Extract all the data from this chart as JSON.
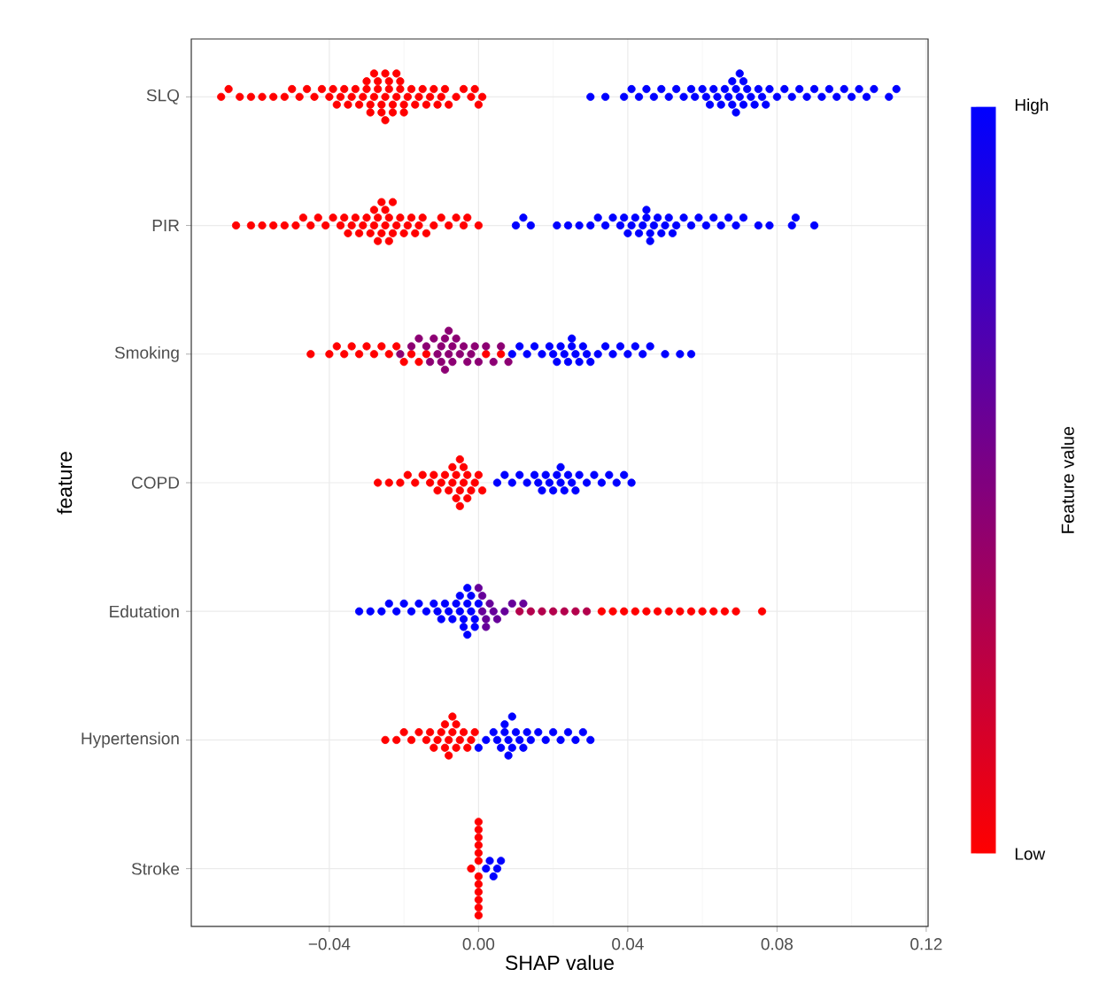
{
  "chart_data": {
    "type": "scatter",
    "orientation": "horizontal",
    "xlabel": "SHAP value",
    "ylabel": "feature",
    "clabel": "Feature value",
    "categories": [
      "SLQ",
      "PIR",
      "Smoking",
      "COPD",
      "Edutation",
      "Hypertension",
      "Stroke"
    ],
    "xlim": [
      -0.077,
      0.1205
    ],
    "xticks": [
      {
        "value": -0.04,
        "label": "−0.04"
      },
      {
        "value": 0,
        "label": "0.00"
      },
      {
        "value": 0.04,
        "label": "0.04"
      },
      {
        "value": 0.08,
        "label": "0.08"
      },
      {
        "value": 0.12,
        "label": "0.12"
      }
    ],
    "clim": [
      0,
      1
    ],
    "cticks": [
      {
        "value": 0,
        "label": "Low"
      },
      {
        "value": 1,
        "label": "High"
      }
    ],
    "grid": true,
    "marker": "circle",
    "series": [
      {
        "x": [
          "SLQ",
          "SLQ",
          "SLQ",
          "SLQ",
          "SLQ",
          "SLQ",
          "SLQ",
          "SLQ",
          "SLQ",
          "SLQ",
          "SLQ",
          "SLQ",
          "SLQ",
          "SLQ",
          "SLQ",
          "SLQ",
          "SLQ",
          "SLQ",
          "SLQ",
          "SLQ",
          "SLQ",
          "SLQ",
          "SLQ",
          "SLQ",
          "SLQ",
          "SLQ",
          "SLQ",
          "SLQ",
          "SLQ",
          "SLQ",
          "SLQ",
          "SLQ",
          "SLQ",
          "SLQ",
          "SLQ",
          "SLQ",
          "SLQ",
          "SLQ",
          "SLQ",
          "SLQ",
          "SLQ",
          "SLQ",
          "SLQ",
          "SLQ",
          "SLQ",
          "SLQ",
          "SLQ",
          "SLQ",
          "SLQ",
          "SLQ",
          "SLQ",
          "SLQ",
          "SLQ",
          "SLQ",
          "SLQ",
          "SLQ",
          "SLQ",
          "SLQ",
          "SLQ",
          "SLQ",
          "SLQ",
          "SLQ",
          "SLQ",
          "SLQ",
          "SLQ",
          "SLQ",
          "SLQ",
          "SLQ",
          "SLQ",
          "SLQ",
          "SLQ",
          "SLQ",
          "SLQ",
          "SLQ",
          "SLQ",
          "SLQ",
          "SLQ",
          "SLQ",
          "SLQ",
          "SLQ",
          "SLQ",
          "SLQ",
          "SLQ",
          "SLQ",
          "SLQ",
          "SLQ",
          "SLQ",
          "SLQ",
          "SLQ",
          "SLQ",
          "SLQ",
          "SLQ",
          "SLQ",
          "SLQ",
          "SLQ",
          "SLQ",
          "SLQ",
          "SLQ",
          "SLQ",
          "SLQ",
          "SLQ",
          "SLQ",
          "SLQ",
          "SLQ",
          "SLQ",
          "SLQ",
          "SLQ",
          "SLQ",
          "SLQ",
          "SLQ",
          "SLQ",
          "SLQ",
          "SLQ",
          "SLQ",
          "SLQ"
        ],
        "values": [
          -0.069,
          -0.067,
          -0.064,
          -0.061,
          -0.058,
          -0.055,
          -0.052,
          -0.05,
          -0.048,
          -0.046,
          -0.044,
          -0.042,
          -0.04,
          -0.039,
          -0.038,
          -0.037,
          -0.036,
          -0.035,
          -0.034,
          -0.033,
          -0.032,
          -0.031,
          -0.03,
          -0.03,
          -0.029,
          -0.029,
          -0.028,
          -0.028,
          -0.027,
          -0.027,
          -0.026,
          -0.026,
          -0.025,
          -0.025,
          -0.025,
          -0.024,
          -0.024,
          -0.023,
          -0.023,
          -0.022,
          -0.022,
          -0.021,
          -0.021,
          -0.02,
          -0.02,
          -0.019,
          -0.018,
          -0.017,
          -0.016,
          -0.015,
          -0.014,
          -0.013,
          -0.012,
          -0.011,
          -0.01,
          -0.009,
          -0.008,
          -0.006,
          -0.004,
          -0.002,
          -0.001,
          0.0,
          0.001,
          0.03,
          0.034,
          0.039,
          0.041,
          0.043,
          0.045,
          0.047,
          0.049,
          0.051,
          0.053,
          0.055,
          0.057,
          0.058,
          0.06,
          0.061,
          0.062,
          0.063,
          0.064,
          0.065,
          0.066,
          0.067,
          0.068,
          0.068,
          0.069,
          0.069,
          0.07,
          0.07,
          0.071,
          0.071,
          0.072,
          0.073,
          0.074,
          0.075,
          0.076,
          0.077,
          0.078,
          0.08,
          0.082,
          0.084,
          0.086,
          0.088,
          0.09,
          0.092,
          0.094,
          0.096,
          0.098,
          0.1,
          0.102,
          0.104,
          0.106,
          0.11,
          0.112
        ],
        "cvalues": [
          0,
          0,
          0,
          0,
          0,
          0,
          0,
          0,
          0,
          0,
          0,
          0,
          0,
          0,
          0,
          0,
          0,
          0,
          0,
          0,
          0,
          0,
          0,
          0,
          0,
          0,
          0,
          0,
          0,
          0,
          0,
          0,
          0,
          0,
          0,
          0,
          0,
          0,
          0,
          0,
          0,
          0,
          0,
          0,
          0,
          0,
          0,
          0,
          0,
          0,
          0,
          0,
          0,
          0,
          0,
          0,
          0,
          0,
          0,
          0,
          0,
          0,
          0,
          1,
          1,
          1,
          1,
          1,
          1,
          1,
          1,
          1,
          1,
          1,
          1,
          1,
          1,
          1,
          1,
          1,
          1,
          1,
          1,
          1,
          1,
          1,
          1,
          1,
          1,
          1,
          1,
          1,
          1,
          1,
          1,
          1,
          1,
          1,
          1,
          1,
          1,
          1,
          1,
          1,
          1,
          1,
          1,
          1,
          1,
          1,
          1,
          1,
          1,
          1,
          1
        ],
        "colors": [
          "#ff0000",
          "#ff0000",
          "#ff0000",
          "#ff0000",
          "#ff0000",
          "#ff0000",
          "#ff0000",
          "#ff0000",
          "#ff0000",
          "#ff0000",
          "#ff0000",
          "#ff0000",
          "#ff0000",
          "#ff0000",
          "#ff0000",
          "#ff0000",
          "#ff0000",
          "#ff0000",
          "#ff0000",
          "#ff0000",
          "#ff0000",
          "#ff0000",
          "#ff0000",
          "#ff0000",
          "#ff0000",
          "#ff0000",
          "#ff0000",
          "#ff0000",
          "#ff0000",
          "#ff0000",
          "#ff0000",
          "#ff0000",
          "#ff0000",
          "#ff0000",
          "#ff0000",
          "#ff0000",
          "#ff0000",
          "#ff0000",
          "#ff0000",
          "#ff0000",
          "#ff0000",
          "#ff0000",
          "#ff0000",
          "#ff0000",
          "#ff0000",
          "#ff0000",
          "#ff0000",
          "#ff0000",
          "#ff0000",
          "#ff0000",
          "#ff0000",
          "#ff0000",
          "#ff0000",
          "#ff0000",
          "#ff0000",
          "#ff0000",
          "#ff0000",
          "#ff0000",
          "#ff0000",
          "#ff0000",
          "#ff0000",
          "#ff0000",
          "#ff0000",
          "#0000ff",
          "#0000ff",
          "#0000ff",
          "#0000ff",
          "#0000ff",
          "#0000ff",
          "#0000ff",
          "#0000ff",
          "#0000ff",
          "#0000ff",
          "#0000ff",
          "#0000ff",
          "#0000ff",
          "#0000ff",
          "#0000ff",
          "#0000ff",
          "#0000ff",
          "#0000ff",
          "#0000ff",
          "#0000ff",
          "#0000ff",
          "#0000ff",
          "#0000ff",
          "#0000ff",
          "#0000ff",
          "#0000ff",
          "#0000ff",
          "#0000ff",
          "#0000ff",
          "#0000ff",
          "#0000ff",
          "#0000ff",
          "#0000ff",
          "#0000ff",
          "#0000ff",
          "#0000ff",
          "#0000ff",
          "#0000ff",
          "#0000ff",
          "#0000ff",
          "#0000ff",
          "#0000ff",
          "#0000ff",
          "#0000ff",
          "#0000ff",
          "#0000ff",
          "#0000ff",
          "#0000ff",
          "#0000ff",
          "#0000ff",
          "#0000ff",
          "#0000ff"
        ]
      },
      {
        "x": [
          "PIR",
          "PIR",
          "PIR",
          "PIR",
          "PIR",
          "PIR",
          "PIR",
          "PIR",
          "PIR",
          "PIR",
          "PIR",
          "PIR",
          "PIR",
          "PIR",
          "PIR",
          "PIR",
          "PIR",
          "PIR",
          "PIR",
          "PIR",
          "PIR",
          "PIR",
          "PIR",
          "PIR",
          "PIR",
          "PIR",
          "PIR",
          "PIR",
          "PIR",
          "PIR",
          "PIR",
          "PIR",
          "PIR",
          "PIR",
          "PIR",
          "PIR",
          "PIR",
          "PIR",
          "PIR",
          "PIR",
          "PIR",
          "PIR",
          "PIR",
          "PIR",
          "PIR",
          "PIR",
          "PIR",
          "PIR",
          "PIR",
          "PIR",
          "PIR",
          "PIR",
          "PIR",
          "PIR",
          "PIR",
          "PIR",
          "PIR",
          "PIR",
          "PIR",
          "PIR",
          "PIR",
          "PIR",
          "PIR",
          "PIR",
          "PIR",
          "PIR",
          "PIR",
          "PIR",
          "PIR",
          "PIR",
          "PIR",
          "PIR",
          "PIR",
          "PIR",
          "PIR",
          "PIR",
          "PIR",
          "PIR",
          "PIR",
          "PIR",
          "PIR",
          "PIR",
          "PIR",
          "PIR",
          "PIR",
          "PIR",
          "PIR",
          "PIR",
          "PIR",
          "PIR"
        ],
        "values": [
          -0.065,
          -0.061,
          -0.058,
          -0.055,
          -0.052,
          -0.049,
          -0.047,
          -0.045,
          -0.043,
          -0.041,
          -0.039,
          -0.037,
          -0.036,
          -0.035,
          -0.034,
          -0.033,
          -0.032,
          -0.031,
          -0.03,
          -0.029,
          -0.028,
          -0.028,
          -0.027,
          -0.027,
          -0.026,
          -0.026,
          -0.025,
          -0.025,
          -0.024,
          -0.024,
          -0.023,
          -0.023,
          -0.022,
          -0.021,
          -0.02,
          -0.019,
          -0.018,
          -0.017,
          -0.016,
          -0.015,
          -0.014,
          -0.012,
          -0.01,
          -0.008,
          -0.006,
          -0.004,
          -0.003,
          0.0,
          0.01,
          0.012,
          0.014,
          0.021,
          0.024,
          0.027,
          0.03,
          0.032,
          0.034,
          0.036,
          0.038,
          0.039,
          0.04,
          0.041,
          0.042,
          0.043,
          0.044,
          0.045,
          0.045,
          0.046,
          0.046,
          0.047,
          0.048,
          0.049,
          0.05,
          0.051,
          0.052,
          0.053,
          0.055,
          0.057,
          0.059,
          0.061,
          0.063,
          0.065,
          0.067,
          0.069,
          0.071,
          0.075,
          0.078,
          0.084,
          0.085,
          0.09
        ],
        "cvalues": [
          0,
          0,
          0,
          0,
          0,
          0,
          0,
          0,
          0,
          0,
          0,
          0,
          0,
          0,
          0,
          0,
          0,
          0,
          0,
          0,
          0,
          0,
          0,
          0,
          0,
          0,
          0,
          0,
          0,
          0,
          0,
          0,
          0,
          0,
          0,
          0,
          0,
          0,
          0,
          0,
          0,
          0,
          0,
          0,
          0,
          0,
          0,
          0,
          1,
          1,
          1,
          1,
          1,
          1,
          1,
          1,
          1,
          1,
          1,
          1,
          1,
          1,
          1,
          1,
          1,
          1,
          1,
          1,
          1,
          1,
          1,
          1,
          1,
          1,
          1,
          1,
          1,
          1,
          1,
          1,
          1,
          1,
          1,
          1,
          1,
          1,
          1,
          1,
          1,
          1
        ],
        "colors": [
          "#ff0000",
          "#ff0000",
          "#ff0000",
          "#ff0000",
          "#ff0000",
          "#ff0000",
          "#ff0000",
          "#ff0000",
          "#ff0000",
          "#ff0000",
          "#ff0000",
          "#ff0000",
          "#ff0000",
          "#ff0000",
          "#ff0000",
          "#ff0000",
          "#ff0000",
          "#ff0000",
          "#ff0000",
          "#ff0000",
          "#ff0000",
          "#ff0000",
          "#ff0000",
          "#ff0000",
          "#ff0000",
          "#ff0000",
          "#ff0000",
          "#ff0000",
          "#ff0000",
          "#ff0000",
          "#ff0000",
          "#ff0000",
          "#ff0000",
          "#ff0000",
          "#ff0000",
          "#ff0000",
          "#ff0000",
          "#ff0000",
          "#ff0000",
          "#ff0000",
          "#ff0000",
          "#ff0000",
          "#ff0000",
          "#ff0000",
          "#ff0000",
          "#ff0000",
          "#ff0000",
          "#ff0000",
          "#0000ff",
          "#0000ff",
          "#0000ff",
          "#0000ff",
          "#0000ff",
          "#0000ff",
          "#0000ff",
          "#0000ff",
          "#0000ff",
          "#0000ff",
          "#0000ff",
          "#0000ff",
          "#0000ff",
          "#0000ff",
          "#0000ff",
          "#0000ff",
          "#0000ff",
          "#0000ff",
          "#0000ff",
          "#0000ff",
          "#0000ff",
          "#0000ff",
          "#0000ff",
          "#0000ff",
          "#0000ff",
          "#0000ff",
          "#0000ff",
          "#0000ff",
          "#0000ff",
          "#0000ff",
          "#0000ff",
          "#0000ff",
          "#0000ff",
          "#0000ff",
          "#0000ff",
          "#0000ff",
          "#0000ff",
          "#0000ff",
          "#0000ff",
          "#0000ff",
          "#0000ff",
          "#0000ff"
        ]
      },
      {
        "x": [
          "Smoking",
          "Smoking",
          "Smoking",
          "Smoking",
          "Smoking",
          "Smoking",
          "Smoking",
          "Smoking",
          "Smoking",
          "Smoking",
          "Smoking",
          "Smoking",
          "Smoking",
          "Smoking",
          "Smoking",
          "Smoking",
          "Smoking",
          "Smoking",
          "Smoking",
          "Smoking",
          "Smoking",
          "Smoking",
          "Smoking",
          "Smoking",
          "Smoking",
          "Smoking",
          "Smoking",
          "Smoking",
          "Smoking",
          "Smoking",
          "Smoking",
          "Smoking",
          "Smoking",
          "Smoking",
          "Smoking",
          "Smoking",
          "Smoking",
          "Smoking",
          "Smoking",
          "Smoking",
          "Smoking",
          "Smoking",
          "Smoking",
          "Smoking",
          "Smoking",
          "Smoking",
          "Smoking",
          "Smoking",
          "Smoking",
          "Smoking",
          "Smoking",
          "Smoking",
          "Smoking",
          "Smoking",
          "Smoking",
          "Smoking",
          "Smoking",
          "Smoking",
          "Smoking",
          "Smoking",
          "Smoking",
          "Smoking",
          "Smoking",
          "Smoking",
          "Smoking",
          "Smoking",
          "Smoking",
          "Smoking",
          "Smoking",
          "Smoking",
          "Smoking",
          "Smoking"
        ],
        "values": [
          -0.045,
          -0.04,
          -0.038,
          -0.036,
          -0.034,
          -0.032,
          -0.03,
          -0.028,
          -0.026,
          -0.024,
          -0.022,
          -0.02,
          -0.018,
          -0.016,
          -0.014,
          0.002,
          0.006,
          -0.021,
          -0.018,
          -0.016,
          -0.014,
          -0.013,
          -0.012,
          -0.011,
          -0.01,
          -0.01,
          -0.009,
          -0.009,
          -0.008,
          -0.008,
          -0.007,
          -0.007,
          -0.006,
          -0.005,
          -0.004,
          -0.003,
          -0.002,
          -0.001,
          0.0,
          0.002,
          0.004,
          0.006,
          0.008,
          0.009,
          0.011,
          0.013,
          0.015,
          0.017,
          0.019,
          0.02,
          0.021,
          0.022,
          0.023,
          0.024,
          0.025,
          0.025,
          0.026,
          0.027,
          0.028,
          0.029,
          0.03,
          0.032,
          0.034,
          0.036,
          0.038,
          0.04,
          0.042,
          0.044,
          0.046,
          0.05,
          0.054,
          0.057
        ],
        "cvalues": [
          0,
          0,
          0,
          0,
          0,
          0,
          0,
          0,
          0,
          0,
          0,
          0,
          0,
          0,
          0,
          0,
          0,
          0.45,
          0.45,
          0.45,
          0.45,
          0.45,
          0.45,
          0.45,
          0.45,
          0.45,
          0.45,
          0.45,
          0.45,
          0.45,
          0.45,
          0.45,
          0.45,
          0.45,
          0.45,
          0.45,
          0.45,
          0.45,
          0.45,
          0.45,
          0.45,
          0.45,
          0.45,
          1,
          1,
          1,
          1,
          1,
          1,
          1,
          1,
          1,
          1,
          1,
          1,
          1,
          1,
          1,
          1,
          1,
          1,
          1,
          1,
          1,
          1,
          1,
          1,
          1,
          1,
          1,
          1,
          1
        ],
        "colors": [
          "#ff0000",
          "#ff0000",
          "#ff0000",
          "#ff0000",
          "#ff0000",
          "#ff0000",
          "#ff0000",
          "#ff0000",
          "#ff0000",
          "#ff0000",
          "#ff0000",
          "#ff0000",
          "#ff0000",
          "#ff0000",
          "#ff0000",
          "#ff0000",
          "#ff0000",
          "#8c0073",
          "#8c0073",
          "#8c0073",
          "#8c0073",
          "#8c0073",
          "#8c0073",
          "#8c0073",
          "#8c0073",
          "#8c0073",
          "#8c0073",
          "#8c0073",
          "#8c0073",
          "#8c0073",
          "#8c0073",
          "#8c0073",
          "#8c0073",
          "#8c0073",
          "#8c0073",
          "#8c0073",
          "#8c0073",
          "#8c0073",
          "#8c0073",
          "#8c0073",
          "#8c0073",
          "#8c0073",
          "#8c0073",
          "#0000ff",
          "#0000ff",
          "#0000ff",
          "#0000ff",
          "#0000ff",
          "#0000ff",
          "#0000ff",
          "#0000ff",
          "#0000ff",
          "#0000ff",
          "#0000ff",
          "#0000ff",
          "#0000ff",
          "#0000ff",
          "#0000ff",
          "#0000ff",
          "#0000ff",
          "#0000ff",
          "#0000ff",
          "#0000ff",
          "#0000ff",
          "#0000ff",
          "#0000ff",
          "#0000ff",
          "#0000ff",
          "#0000ff",
          "#0000ff",
          "#0000ff",
          "#0000ff"
        ]
      },
      {
        "x": [
          "COPD",
          "COPD",
          "COPD",
          "COPD",
          "COPD",
          "COPD",
          "COPD",
          "COPD",
          "COPD",
          "COPD",
          "COPD",
          "COPD",
          "COPD",
          "COPD",
          "COPD",
          "COPD",
          "COPD",
          "COPD",
          "COPD",
          "COPD",
          "COPD",
          "COPD",
          "COPD",
          "COPD",
          "COPD",
          "COPD",
          "COPD",
          "COPD",
          "COPD",
          "COPD",
          "COPD",
          "COPD",
          "COPD",
          "COPD",
          "COPD",
          "COPD",
          "COPD",
          "COPD",
          "COPD",
          "COPD",
          "COPD",
          "COPD",
          "COPD",
          "COPD",
          "COPD",
          "COPD",
          "COPD",
          "COPD",
          "COPD",
          "COPD",
          "COPD",
          "COPD",
          "COPD"
        ],
        "values": [
          -0.027,
          -0.024,
          -0.021,
          -0.019,
          -0.017,
          -0.015,
          -0.013,
          -0.012,
          -0.011,
          -0.01,
          -0.009,
          -0.008,
          -0.007,
          -0.007,
          -0.006,
          -0.006,
          -0.005,
          -0.005,
          -0.005,
          -0.004,
          -0.004,
          -0.003,
          -0.003,
          -0.002,
          -0.001,
          0.0,
          0.001,
          0.005,
          0.007,
          0.009,
          0.011,
          0.013,
          0.015,
          0.016,
          0.017,
          0.018,
          0.019,
          0.02,
          0.021,
          0.022,
          0.022,
          0.023,
          0.024,
          0.025,
          0.026,
          0.027,
          0.029,
          0.031,
          0.033,
          0.035,
          0.037,
          0.039,
          0.041
        ],
        "cvalues": [
          0,
          0,
          0,
          0,
          0,
          0,
          0,
          0,
          0,
          0,
          0,
          0,
          0,
          0,
          0,
          0,
          0,
          0,
          0,
          0,
          0,
          0,
          0,
          0,
          0,
          0,
          0,
          1,
          1,
          1,
          1,
          1,
          1,
          1,
          1,
          1,
          1,
          1,
          1,
          1,
          1,
          1,
          1,
          1,
          1,
          1,
          1,
          1,
          1,
          1,
          1,
          1,
          1
        ],
        "colors": [
          "#ff0000",
          "#ff0000",
          "#ff0000",
          "#ff0000",
          "#ff0000",
          "#ff0000",
          "#ff0000",
          "#ff0000",
          "#ff0000",
          "#ff0000",
          "#ff0000",
          "#ff0000",
          "#ff0000",
          "#ff0000",
          "#ff0000",
          "#ff0000",
          "#ff0000",
          "#ff0000",
          "#ff0000",
          "#ff0000",
          "#ff0000",
          "#ff0000",
          "#ff0000",
          "#ff0000",
          "#ff0000",
          "#ff0000",
          "#ff0000",
          "#0000ff",
          "#0000ff",
          "#0000ff",
          "#0000ff",
          "#0000ff",
          "#0000ff",
          "#0000ff",
          "#0000ff",
          "#0000ff",
          "#0000ff",
          "#0000ff",
          "#0000ff",
          "#0000ff",
          "#0000ff",
          "#0000ff",
          "#0000ff",
          "#0000ff",
          "#0000ff",
          "#0000ff",
          "#0000ff",
          "#0000ff",
          "#0000ff",
          "#0000ff",
          "#0000ff",
          "#0000ff",
          "#0000ff"
        ]
      },
      {
        "x": [
          "Edutation",
          "Edutation",
          "Edutation",
          "Edutation",
          "Edutation",
          "Edutation",
          "Edutation",
          "Edutation",
          "Edutation",
          "Edutation",
          "Edutation",
          "Edutation",
          "Edutation",
          "Edutation",
          "Edutation",
          "Edutation",
          "Edutation",
          "Edutation",
          "Edutation",
          "Edutation",
          "Edutation",
          "Edutation",
          "Edutation",
          "Edutation",
          "Edutation",
          "Edutation",
          "Edutation",
          "Edutation",
          "Edutation",
          "Edutation",
          "Edutation",
          "Edutation",
          "Edutation",
          "Edutation",
          "Edutation",
          "Edutation",
          "Edutation",
          "Edutation",
          "Edutation",
          "Edutation",
          "Edutation",
          "Edutation",
          "Edutation",
          "Edutation",
          "Edutation",
          "Edutation",
          "Edutation",
          "Edutation",
          "Edutation",
          "Edutation",
          "Edutation",
          "Edutation",
          "Edutation",
          "Edutation",
          "Edutation",
          "Edutation",
          "Edutation",
          "Edutation",
          "Edutation",
          "Edutation"
        ],
        "values": [
          -0.032,
          -0.029,
          -0.026,
          -0.024,
          -0.022,
          -0.02,
          -0.018,
          -0.016,
          -0.014,
          -0.012,
          -0.011,
          -0.01,
          -0.009,
          -0.008,
          -0.007,
          -0.006,
          -0.005,
          -0.005,
          -0.004,
          -0.004,
          -0.003,
          -0.003,
          -0.003,
          -0.002,
          -0.002,
          -0.001,
          -0.001,
          0.0,
          0.0,
          0.001,
          0.001,
          0.002,
          0.002,
          0.003,
          0.004,
          0.005,
          0.007,
          0.009,
          0.012,
          0.011,
          0.014,
          0.017,
          0.02,
          0.023,
          0.026,
          0.029,
          0.033,
          0.036,
          0.039,
          0.042,
          0.045,
          0.048,
          0.051,
          0.054,
          0.057,
          0.06,
          0.063,
          0.066,
          0.069,
          0.076
        ],
        "cvalues": [
          1,
          1,
          1,
          1,
          1,
          1,
          1,
          1,
          1,
          1,
          1,
          1,
          1,
          1,
          1,
          1,
          1,
          1,
          1,
          1,
          1,
          1,
          1,
          1,
          1,
          1,
          1,
          1,
          0.6,
          0.6,
          0.6,
          0.6,
          0.6,
          0.6,
          0.6,
          0.6,
          0.6,
          0.6,
          0.6,
          0.3,
          0.3,
          0.3,
          0.3,
          0.3,
          0.3,
          0.3,
          0,
          0,
          0,
          0,
          0,
          0,
          0,
          0,
          0,
          0,
          0,
          0,
          0,
          0
        ],
        "colors": [
          "#0000ff",
          "#0000ff",
          "#0000ff",
          "#0000ff",
          "#0000ff",
          "#0000ff",
          "#0000ff",
          "#0000ff",
          "#0000ff",
          "#0000ff",
          "#0000ff",
          "#0000ff",
          "#0000ff",
          "#0000ff",
          "#0000ff",
          "#0000ff",
          "#0000ff",
          "#0000ff",
          "#0000ff",
          "#0000ff",
          "#0000ff",
          "#0000ff",
          "#0000ff",
          "#0000ff",
          "#0000ff",
          "#0000ff",
          "#0000ff",
          "#0000ff",
          "#660099",
          "#660099",
          "#660099",
          "#660099",
          "#660099",
          "#660099",
          "#660099",
          "#660099",
          "#660099",
          "#660099",
          "#660099",
          "#b3004c",
          "#b3004c",
          "#b3004c",
          "#b3004c",
          "#b3004c",
          "#b3004c",
          "#b3004c",
          "#ff0000",
          "#ff0000",
          "#ff0000",
          "#ff0000",
          "#ff0000",
          "#ff0000",
          "#ff0000",
          "#ff0000",
          "#ff0000",
          "#ff0000",
          "#ff0000",
          "#ff0000",
          "#ff0000",
          "#ff0000"
        ]
      },
      {
        "x": [
          "Hypertension",
          "Hypertension",
          "Hypertension",
          "Hypertension",
          "Hypertension",
          "Hypertension",
          "Hypertension",
          "Hypertension",
          "Hypertension",
          "Hypertension",
          "Hypertension",
          "Hypertension",
          "Hypertension",
          "Hypertension",
          "Hypertension",
          "Hypertension",
          "Hypertension",
          "Hypertension",
          "Hypertension",
          "Hypertension",
          "Hypertension",
          "Hypertension",
          "Hypertension",
          "Hypertension",
          "Hypertension",
          "Hypertension",
          "Hypertension",
          "Hypertension",
          "Hypertension",
          "Hypertension",
          "Hypertension",
          "Hypertension",
          "Hypertension",
          "Hypertension",
          "Hypertension",
          "Hypertension",
          "Hypertension",
          "Hypertension",
          "Hypertension",
          "Hypertension",
          "Hypertension",
          "Hypertension",
          "Hypertension",
          "Hypertension",
          "Hypertension",
          "Hypertension",
          "Hypertension"
        ],
        "values": [
          -0.025,
          -0.022,
          -0.02,
          -0.018,
          -0.016,
          -0.014,
          -0.013,
          -0.012,
          -0.011,
          -0.01,
          -0.009,
          -0.009,
          -0.008,
          -0.008,
          -0.007,
          -0.007,
          -0.006,
          -0.006,
          -0.005,
          -0.004,
          -0.003,
          -0.002,
          -0.001,
          0.0,
          0.002,
          0.004,
          0.005,
          0.006,
          0.007,
          0.007,
          0.008,
          0.008,
          0.009,
          0.009,
          0.01,
          0.011,
          0.012,
          0.013,
          0.014,
          0.016,
          0.018,
          0.02,
          0.022,
          0.024,
          0.026,
          0.028,
          0.03
        ],
        "cvalues": [
          0,
          0,
          0,
          0,
          0,
          0,
          0,
          0,
          0,
          0,
          0,
          0,
          0,
          0,
          0,
          0,
          0,
          0,
          0,
          0,
          0,
          0,
          0,
          1,
          1,
          1,
          1,
          1,
          1,
          1,
          1,
          1,
          1,
          1,
          1,
          1,
          1,
          1,
          1,
          1,
          1,
          1,
          1,
          1,
          1,
          1,
          1
        ],
        "colors": [
          "#ff0000",
          "#ff0000",
          "#ff0000",
          "#ff0000",
          "#ff0000",
          "#ff0000",
          "#ff0000",
          "#ff0000",
          "#ff0000",
          "#ff0000",
          "#ff0000",
          "#ff0000",
          "#ff0000",
          "#ff0000",
          "#ff0000",
          "#ff0000",
          "#ff0000",
          "#ff0000",
          "#ff0000",
          "#ff0000",
          "#ff0000",
          "#ff0000",
          "#ff0000",
          "#0000ff",
          "#0000ff",
          "#0000ff",
          "#0000ff",
          "#0000ff",
          "#0000ff",
          "#0000ff",
          "#0000ff",
          "#0000ff",
          "#0000ff",
          "#0000ff",
          "#0000ff",
          "#0000ff",
          "#0000ff",
          "#0000ff",
          "#0000ff",
          "#0000ff",
          "#0000ff",
          "#0000ff",
          "#0000ff",
          "#0000ff",
          "#0000ff",
          "#0000ff",
          "#0000ff"
        ]
      },
      {
        "x": [
          "Stroke",
          "Stroke",
          "Stroke",
          "Stroke",
          "Stroke",
          "Stroke",
          "Stroke",
          "Stroke",
          "Stroke",
          "Stroke",
          "Stroke",
          "Stroke",
          "Stroke",
          "Stroke",
          "Stroke",
          "Stroke",
          "Stroke",
          "Stroke"
        ],
        "values": [
          -0.002,
          0.0,
          0.0,
          0.0,
          0.0,
          0.0,
          0.0,
          0.0,
          0.0,
          0.0,
          0.0,
          0.0,
          0.0,
          0.002,
          0.003,
          0.004,
          0.005,
          0.006
        ],
        "cvalues": [
          0,
          0,
          0,
          0,
          0,
          0,
          0,
          0,
          0,
          0,
          0,
          0,
          0,
          1,
          1,
          1,
          1,
          1
        ],
        "colors": [
          "#ff0000",
          "#ff0000",
          "#ff0000",
          "#ff0000",
          "#ff0000",
          "#ff0000",
          "#ff0000",
          "#ff0000",
          "#ff0000",
          "#ff0000",
          "#ff0000",
          "#ff0000",
          "#ff0000",
          "#0000ff",
          "#0000ff",
          "#0000ff",
          "#0000ff",
          "#0000ff"
        ]
      }
    ]
  }
}
